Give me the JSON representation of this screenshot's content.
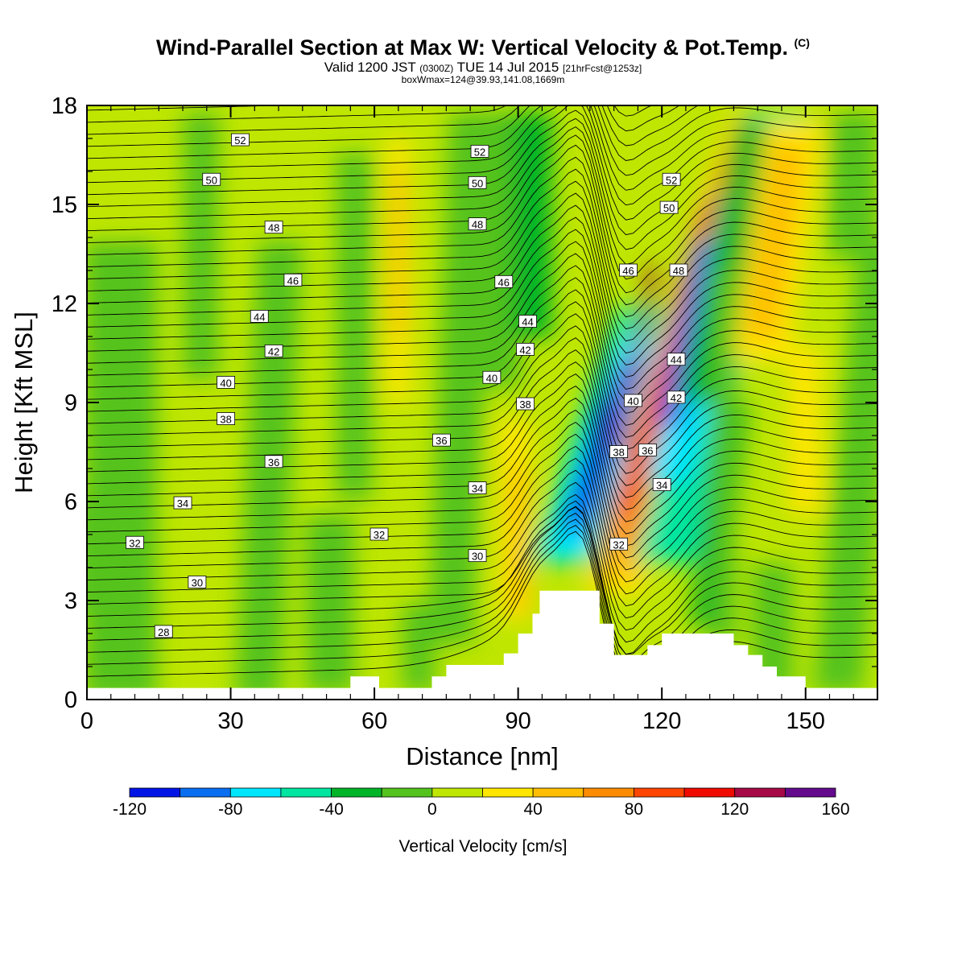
{
  "title": {
    "main": "Wind-Parallel Section at Max W: Vertical Velocity & Pot.Temp.",
    "copyright": "(C)",
    "valid_prefix": "Valid 1200 JST",
    "valid_utc": "(0300Z)",
    "valid_date": "TUE 14 Jul 2015",
    "valid_fcst": "[21hrFcst@1253z]",
    "box": "boxWmax=124@39.93,141.08,1669m"
  },
  "chart_data": {
    "type": "heatmap",
    "xlabel": "Distance [nm]",
    "ylabel": "Height [Kft MSL]",
    "xlim": [
      0,
      165
    ],
    "ylim": [
      0,
      18
    ],
    "x_ticks": [
      0,
      30,
      60,
      90,
      120,
      150
    ],
    "y_ticks": [
      0,
      3,
      6,
      9,
      12,
      15,
      18
    ],
    "colorbar": {
      "label": "Vertical Velocity [cm/s]",
      "levels": [
        -120,
        -100,
        -80,
        -60,
        -40,
        -20,
        0,
        20,
        40,
        60,
        80,
        100,
        120,
        140,
        160
      ],
      "tick_labels": [
        -120,
        -80,
        -40,
        0,
        40,
        80,
        120,
        160
      ],
      "colors": [
        "#0014e6",
        "#0a6ef0",
        "#00e6ff",
        "#00e6a0",
        "#00b428",
        "#55c31e",
        "#bee600",
        "#ffe600",
        "#ffbe00",
        "#ff8c00",
        "#ff4600",
        "#f00a00",
        "#a50a46",
        "#640a8c"
      ]
    },
    "theta_contours": {
      "units": "K (labels shown minus 270)",
      "labels": [
        {
          "v": "52",
          "x": 32,
          "y": 16.95
        },
        {
          "v": "50",
          "x": 26,
          "y": 15.75
        },
        {
          "v": "48",
          "x": 39,
          "y": 14.3
        },
        {
          "v": "46",
          "x": 43,
          "y": 12.7
        },
        {
          "v": "44",
          "x": 36,
          "y": 11.6
        },
        {
          "v": "42",
          "x": 39,
          "y": 10.55
        },
        {
          "v": "40",
          "x": 29,
          "y": 9.6
        },
        {
          "v": "38",
          "x": 29,
          "y": 8.5
        },
        {
          "v": "36",
          "x": 39,
          "y": 7.2
        },
        {
          "v": "34",
          "x": 20,
          "y": 5.95
        },
        {
          "v": "32",
          "x": 10,
          "y": 4.75
        },
        {
          "v": "30",
          "x": 23,
          "y": 3.55
        },
        {
          "v": "28",
          "x": 16,
          "y": 2.05
        },
        {
          "v": "52",
          "x": 82,
          "y": 16.6
        },
        {
          "v": "50",
          "x": 81.5,
          "y": 15.65
        },
        {
          "v": "48",
          "x": 81.5,
          "y": 14.4
        },
        {
          "v": "46",
          "x": 87,
          "y": 12.65
        },
        {
          "v": "44",
          "x": 92,
          "y": 11.45
        },
        {
          "v": "42",
          "x": 91.5,
          "y": 10.6
        },
        {
          "v": "40",
          "x": 84.5,
          "y": 9.75
        },
        {
          "v": "38",
          "x": 91.5,
          "y": 8.95
        },
        {
          "v": "36",
          "x": 74,
          "y": 7.85
        },
        {
          "v": "34",
          "x": 81.5,
          "y": 6.4
        },
        {
          "v": "32",
          "x": 61,
          "y": 5.0
        },
        {
          "v": "30",
          "x": 81.5,
          "y": 4.35
        },
        {
          "v": "52",
          "x": 122,
          "y": 15.75
        },
        {
          "v": "50",
          "x": 121.5,
          "y": 14.9
        },
        {
          "v": "48",
          "x": 123.5,
          "y": 13.0
        },
        {
          "v": "46",
          "x": 113,
          "y": 13.0
        },
        {
          "v": "44",
          "x": 123,
          "y": 10.3
        },
        {
          "v": "42",
          "x": 123,
          "y": 9.15
        },
        {
          "v": "40",
          "x": 114,
          "y": 9.05
        },
        {
          "v": "38",
          "x": 111,
          "y": 7.5
        },
        {
          "v": "36",
          "x": 117,
          "y": 7.55
        },
        {
          "v": "34",
          "x": 120,
          "y": 6.5
        },
        {
          "v": "32",
          "x": 111,
          "y": 4.7
        }
      ]
    },
    "terrain": {
      "x": [
        0,
        55,
        55,
        61,
        61,
        65,
        65,
        72,
        72,
        75,
        75,
        78,
        78,
        87,
        87,
        90,
        90,
        93,
        93,
        94.5,
        94.5,
        107,
        107,
        110,
        110,
        117,
        117,
        120,
        120,
        135,
        135,
        138,
        138,
        141,
        141,
        144,
        144,
        150,
        150,
        165
      ],
      "y": [
        0.35,
        0.35,
        0.7,
        0.7,
        0.35,
        0.35,
        0.35,
        0.35,
        0.7,
        0.7,
        1.05,
        1.05,
        1.05,
        1.05,
        1.4,
        1.4,
        2.0,
        2.0,
        2.6,
        2.6,
        3.3,
        3.3,
        2.3,
        2.3,
        1.35,
        1.35,
        1.65,
        1.65,
        2.0,
        2.0,
        1.65,
        1.65,
        1.35,
        1.35,
        1.0,
        1.0,
        0.7,
        0.7,
        0.35,
        0.35
      ]
    }
  }
}
